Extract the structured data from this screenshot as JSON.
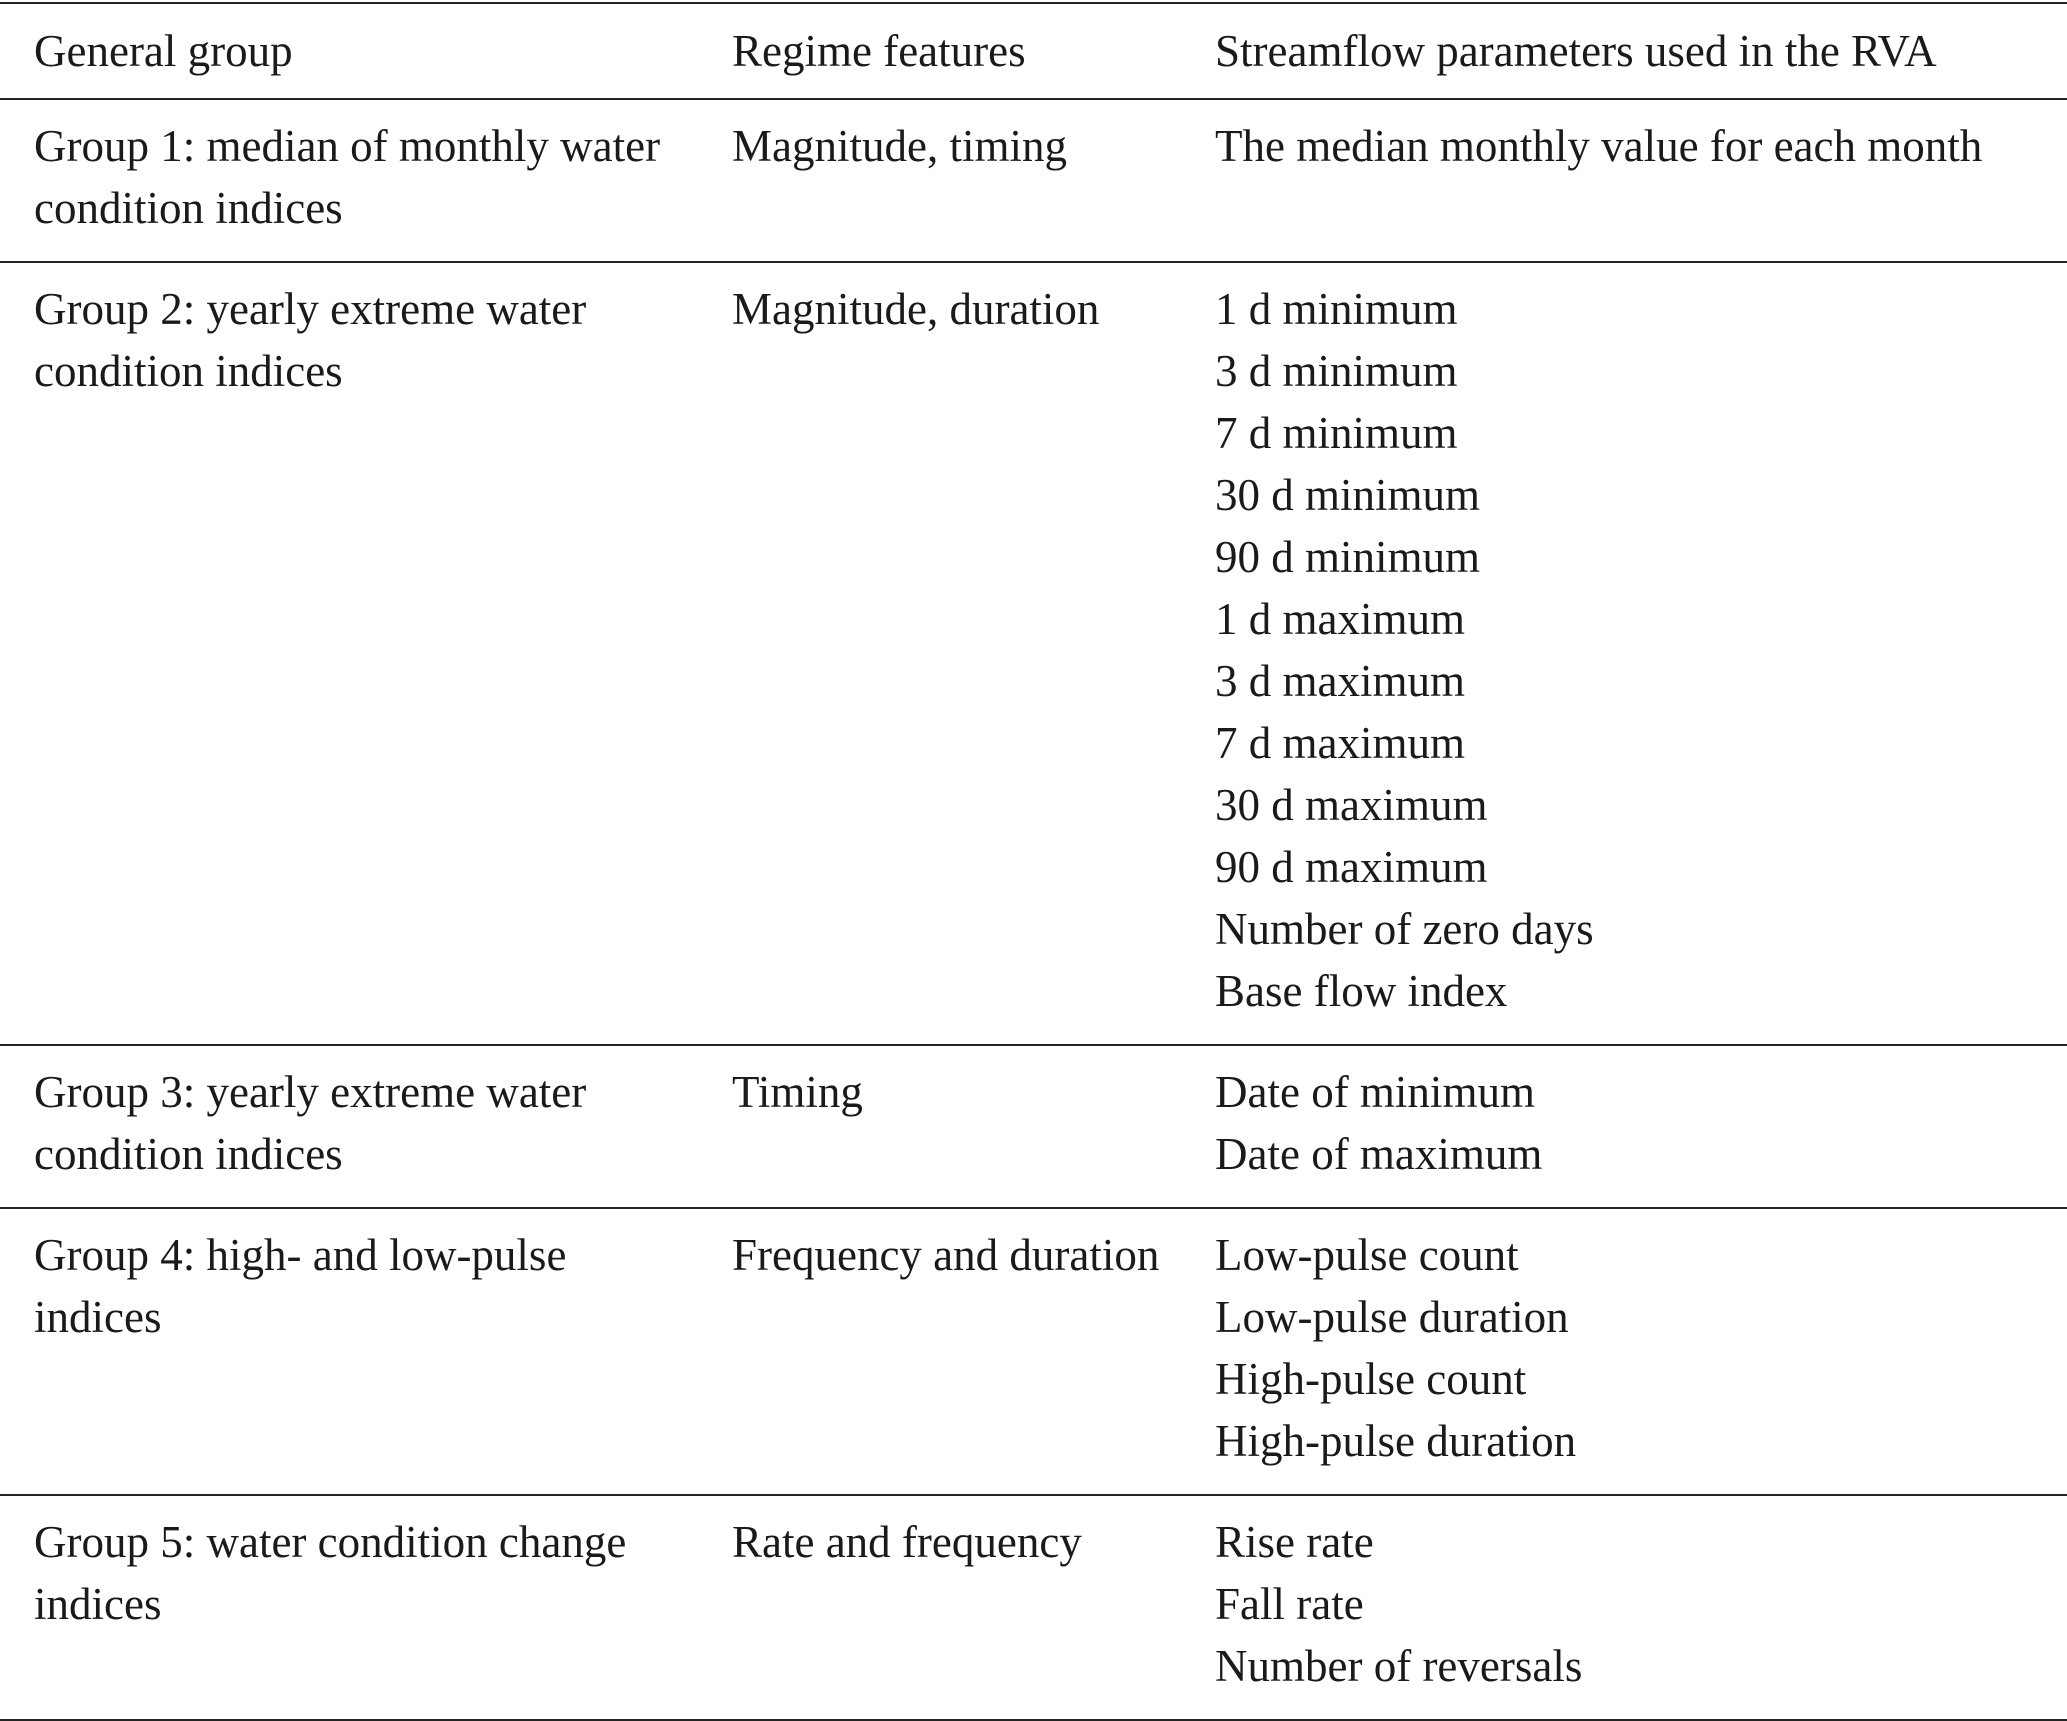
{
  "table": {
    "header": [
      "General group",
      "Regime features",
      "Streamflow parameters used in the RVA"
    ],
    "rows": [
      {
        "group": "Group 1: median of monthly water condition indices",
        "features": "Magnitude, timing",
        "parameters": [
          "The median monthly value for each month"
        ]
      },
      {
        "group": "Group 2: yearly extreme water condition indices",
        "features": "Magnitude, duration",
        "parameters": [
          "1 d minimum",
          "3 d minimum",
          "7 d minimum",
          "30 d minimum",
          "90 d minimum",
          "1 d maximum",
          "3 d maximum",
          "7 d maximum",
          "30 d maximum",
          "90 d maximum",
          "Number of zero days",
          "Base flow index"
        ]
      },
      {
        "group": "Group 3: yearly extreme water condition indices",
        "features": "Timing",
        "parameters": [
          "Date of minimum",
          "Date of maximum"
        ]
      },
      {
        "group": "Group 4: high- and low-pulse indices",
        "features": "Frequency and duration",
        "parameters": [
          "Low-pulse count",
          "Low-pulse duration",
          "High-pulse count",
          "High-pulse duration"
        ]
      },
      {
        "group": "Group 5: water condition change indices",
        "features": "Rate and frequency",
        "parameters": [
          "Rise rate",
          "Fall rate",
          "Number of reversals"
        ]
      }
    ]
  }
}
